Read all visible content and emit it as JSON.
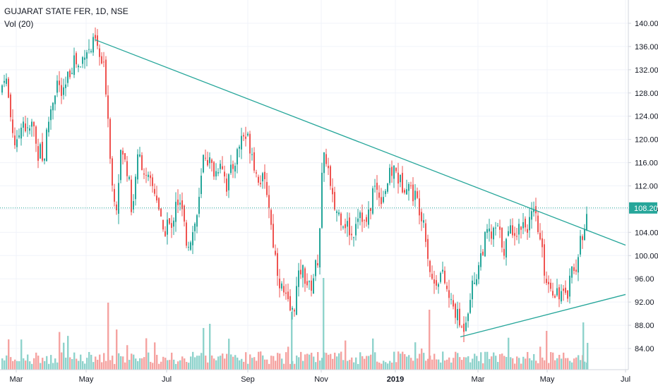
{
  "header": {
    "symbol_line": "GUJARAT STATE FER, 1D, NSE",
    "volume_line": "Vol (20)"
  },
  "colors": {
    "up": "#26a69a",
    "down": "#ef5350",
    "up_vol": "#8fd3cc",
    "down_vol": "#f5a3a1",
    "trendline": "#26a69a",
    "last_price": "#26a69a",
    "axis_text": "#131722",
    "axis_line": "#d1d4dc"
  },
  "chart_data": {
    "type": "candlestick",
    "x_labels": [
      "Mar",
      "May",
      "Jul",
      "Sep",
      "Nov",
      "2019",
      "Mar",
      "May",
      "Jul"
    ],
    "y_ticks": [
      "84.00",
      "88.00",
      "92.00",
      "96.00",
      "100.00",
      "104.00",
      "108.00",
      "112.00",
      "116.00",
      "120.00",
      "124.00",
      "128.00",
      "132.00",
      "136.00",
      "140.00"
    ],
    "ylim": [
      82,
      144
    ],
    "last_price": "108.20",
    "price_path": [
      [
        0,
        128
      ],
      [
        6,
        132
      ],
      [
        14,
        124
      ],
      [
        22,
        118
      ],
      [
        30,
        124
      ],
      [
        38,
        121
      ],
      [
        46,
        123
      ],
      [
        52,
        117
      ],
      [
        56,
        120
      ],
      [
        60,
        115
      ],
      [
        66,
        122
      ],
      [
        72,
        126
      ],
      [
        80,
        130
      ],
      [
        88,
        127
      ],
      [
        96,
        131
      ],
      [
        104,
        134
      ],
      [
        112,
        132
      ],
      [
        120,
        136
      ],
      [
        126,
        135
      ],
      [
        134,
        137
      ],
      [
        140,
        134
      ],
      [
        146,
        132
      ],
      [
        150,
        128
      ],
      [
        154,
        120
      ],
      [
        158,
        112
      ],
      [
        164,
        109
      ],
      [
        170,
        118
      ],
      [
        176,
        116
      ],
      [
        182,
        114
      ],
      [
        186,
        106
      ],
      [
        192,
        116
      ],
      [
        198,
        117
      ],
      [
        206,
        113
      ],
      [
        214,
        112
      ],
      [
        222,
        110
      ],
      [
        230,
        103
      ],
      [
        236,
        106
      ],
      [
        242,
        104
      ],
      [
        248,
        110
      ],
      [
        256,
        108
      ],
      [
        264,
        102
      ],
      [
        272,
        104
      ],
      [
        280,
        108
      ],
      [
        288,
        118
      ],
      [
        296,
        116
      ],
      [
        304,
        114
      ],
      [
        312,
        117
      ],
      [
        320,
        112
      ],
      [
        328,
        115
      ],
      [
        336,
        118
      ],
      [
        342,
        121
      ],
      [
        350,
        120
      ],
      [
        356,
        118
      ],
      [
        362,
        114
      ],
      [
        370,
        113
      ],
      [
        378,
        111
      ],
      [
        384,
        104
      ],
      [
        390,
        99
      ],
      [
        396,
        95
      ],
      [
        402,
        93
      ],
      [
        408,
        91
      ],
      [
        414,
        90
      ],
      [
        420,
        95
      ],
      [
        426,
        98
      ],
      [
        432,
        96
      ],
      [
        438,
        94
      ],
      [
        444,
        97
      ],
      [
        450,
        100
      ],
      [
        456,
        116
      ],
      [
        462,
        117
      ],
      [
        468,
        110
      ],
      [
        474,
        108
      ],
      [
        480,
        107
      ],
      [
        486,
        106
      ],
      [
        492,
        105
      ],
      [
        498,
        103
      ],
      [
        504,
        107
      ],
      [
        510,
        108
      ],
      [
        516,
        105
      ],
      [
        522,
        107
      ],
      [
        528,
        112
      ],
      [
        534,
        111
      ],
      [
        540,
        110
      ],
      [
        546,
        112
      ],
      [
        552,
        114
      ],
      [
        558,
        115
      ],
      [
        564,
        113
      ],
      [
        570,
        112
      ],
      [
        576,
        113
      ],
      [
        582,
        111
      ],
      [
        588,
        110
      ],
      [
        594,
        108
      ],
      [
        600,
        106
      ],
      [
        606,
        99
      ],
      [
        612,
        95
      ],
      [
        618,
        96
      ],
      [
        624,
        97
      ],
      [
        630,
        95
      ],
      [
        636,
        92
      ],
      [
        642,
        91
      ],
      [
        648,
        89
      ],
      [
        654,
        87
      ],
      [
        660,
        90
      ],
      [
        666,
        94
      ],
      [
        672,
        96
      ],
      [
        678,
        99
      ],
      [
        684,
        102
      ],
      [
        690,
        104
      ],
      [
        696,
        103
      ],
      [
        702,
        105
      ],
      [
        708,
        103
      ],
      [
        714,
        101
      ],
      [
        720,
        104
      ],
      [
        726,
        105
      ],
      [
        732,
        104
      ],
      [
        738,
        106
      ],
      [
        744,
        105
      ],
      [
        750,
        106
      ],
      [
        756,
        107
      ],
      [
        760,
        105
      ],
      [
        766,
        101
      ],
      [
        772,
        96
      ],
      [
        778,
        95
      ],
      [
        784,
        94
      ],
      [
        790,
        94
      ],
      [
        796,
        93
      ],
      [
        802,
        92
      ],
      [
        806,
        98
      ],
      [
        812,
        97
      ],
      [
        818,
        100
      ],
      [
        824,
        104
      ],
      [
        830,
        108
      ]
    ],
    "trendlines": [
      {
        "from": [
          134,
          137.2
        ],
        "to": [
          886,
          101.8
        ]
      },
      {
        "from": [
          652,
          86.0
        ],
        "to": [
          886,
          93.3
        ]
      }
    ]
  }
}
